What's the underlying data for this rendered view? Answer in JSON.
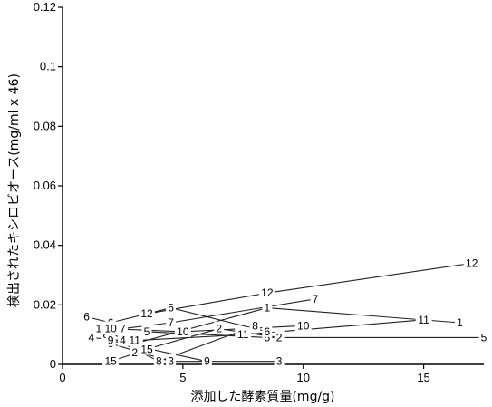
{
  "chart_data": {
    "type": "line",
    "title": "",
    "xlabel": "添加した酵素質量(mg/g)",
    "ylabel": "検出されたキシロビオース(mg/ml x 46)",
    "xlim": [
      0,
      17.5
    ],
    "ylim": [
      0,
      0.12
    ],
    "xticks": [
      0,
      5,
      10,
      15
    ],
    "yticks": [
      0,
      0.02,
      0.04,
      0.06,
      0.08,
      0.1,
      0.12
    ],
    "x_tick_labels": [
      "0",
      "5",
      "10",
      "15"
    ],
    "y_tick_labels": [
      "0",
      "0.02",
      "0.04",
      "0.06",
      "0.08",
      "0.1",
      "0.12"
    ],
    "grid": false,
    "legend": "none",
    "series": [
      {
        "label": "1",
        "points": [
          [
            1.5,
            0.012
          ],
          [
            3.0,
            0.007
          ],
          [
            8.5,
            0.019
          ],
          [
            16.5,
            0.014
          ]
        ]
      },
      {
        "label": "2",
        "points": [
          [
            3.0,
            0.004
          ],
          [
            6.5,
            0.012
          ],
          [
            9.0,
            0.009
          ]
        ]
      },
      {
        "label": "3",
        "points": [
          [
            2.0,
            0.007
          ],
          [
            4.5,
            0.001
          ],
          [
            9.0,
            0.001
          ]
        ]
      },
      {
        "label": "4",
        "points": [
          [
            1.2,
            0.009
          ],
          [
            2.5,
            0.008
          ]
        ]
      },
      {
        "label": "5",
        "points": [
          [
            3.5,
            0.011
          ],
          [
            8.5,
            0.009
          ],
          [
            17.5,
            0.009
          ]
        ]
      },
      {
        "label": "6",
        "points": [
          [
            1.0,
            0.016
          ],
          [
            2.0,
            0.014
          ],
          [
            4.5,
            0.019
          ],
          [
            8.5,
            0.011
          ]
        ]
      },
      {
        "label": "7",
        "points": [
          [
            2.5,
            0.012
          ],
          [
            4.5,
            0.014
          ],
          [
            10.5,
            0.022
          ]
        ]
      },
      {
        "label": "8",
        "points": [
          [
            1.8,
            0.01
          ],
          [
            4.0,
            0.001
          ],
          [
            8.0,
            0.013
          ]
        ]
      },
      {
        "label": "9",
        "points": [
          [
            2.0,
            0.008
          ],
          [
            6.0,
            0.001
          ]
        ]
      },
      {
        "label": "10",
        "points": [
          [
            2.0,
            0.012
          ],
          [
            5.0,
            0.011
          ],
          [
            10.0,
            0.013
          ]
        ]
      },
      {
        "label": "11",
        "points": [
          [
            3.0,
            0.008
          ],
          [
            7.5,
            0.01
          ],
          [
            15.0,
            0.015
          ]
        ]
      },
      {
        "label": "12",
        "points": [
          [
            3.5,
            0.017
          ],
          [
            8.5,
            0.024
          ],
          [
            17.0,
            0.034
          ]
        ]
      },
      {
        "label": "15",
        "points": [
          [
            2.0,
            0.001
          ],
          [
            3.5,
            0.005
          ]
        ]
      }
    ]
  }
}
